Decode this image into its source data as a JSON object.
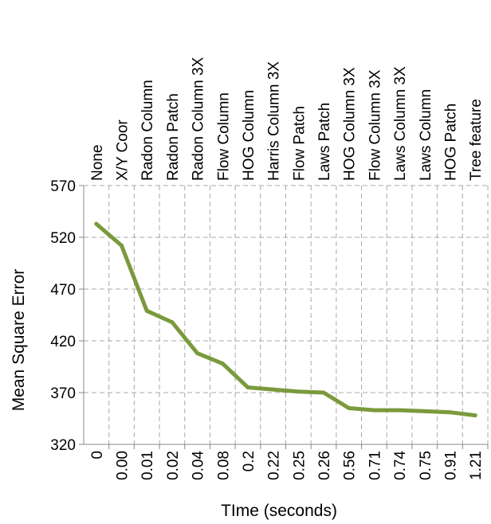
{
  "chart_data": {
    "type": "line",
    "title": "",
    "xlabel": "TIme (seconds)",
    "ylabel": "Mean Square Error",
    "ylim": [
      320,
      570
    ],
    "yticks": [
      "570",
      "520",
      "470",
      "420",
      "370",
      "320"
    ],
    "grid": true,
    "line_color": "#7a9a3c",
    "feature_labels": [
      "None",
      "X/Y Coor",
      "Radon Column",
      "Radon Patch",
      "Radon Column 3X",
      "Flow Column",
      "HOG Column",
      "Harris Column 3X",
      "Flow Patch",
      "Laws Patch",
      "HOG Column 3X",
      "Flow Column 3X",
      "Laws Column 3X",
      "Laws Column",
      "HOG Patch",
      "Tree feature"
    ],
    "categories": [
      "0",
      "0.00",
      "0.01",
      "0.02",
      "0.04",
      "0.08",
      "0.2",
      "0.22",
      "0.25",
      "0.26",
      "0.56",
      "0.71",
      "0.74",
      "0.75",
      "0.91",
      "1.21"
    ],
    "series": [
      {
        "values": [
          533,
          512,
          449,
          438,
          408,
          398,
          375,
          373,
          371,
          370,
          355,
          353,
          353,
          352,
          351,
          348
        ]
      }
    ]
  }
}
